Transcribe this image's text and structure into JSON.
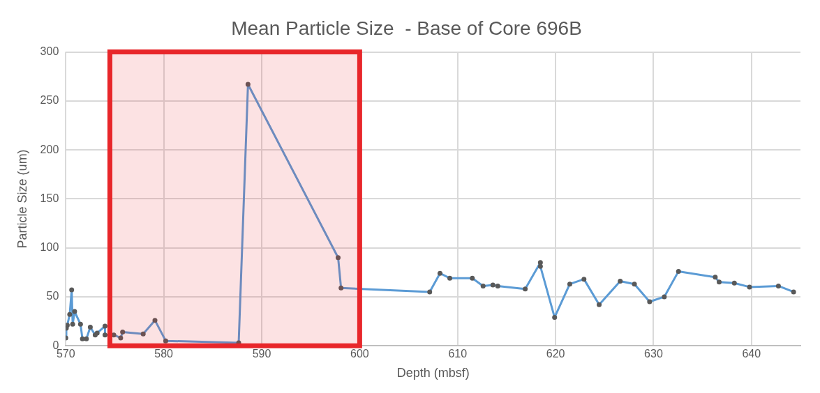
{
  "chart_data": {
    "type": "line",
    "title": "Mean Particle Size  - Base of Core 696B",
    "xlabel": "Depth (mbsf)",
    "ylabel": "Particle Size (um)",
    "xlim": [
      570,
      645
    ],
    "xticks": [
      570,
      580,
      590,
      600,
      610,
      620,
      630,
      640
    ],
    "ylim": [
      0,
      300
    ],
    "yticks": [
      0,
      50,
      100,
      150,
      200,
      250,
      300
    ],
    "grid": true,
    "legend": false,
    "marker": "circle",
    "line_style": "solid",
    "bands": [
      {
        "axis": "x",
        "from": 574.5,
        "to": 600,
        "color": "#e8262a"
      }
    ],
    "series": [
      {
        "color": "#5b9bd5",
        "x": [
          570,
          570.05,
          570.15,
          570.4,
          570.6,
          570.7,
          570.9,
          571.5,
          571.7,
          572.1,
          572.5,
          573,
          573.2,
          574,
          574,
          574.9,
          575.6,
          575.8,
          577.9,
          579.1,
          580.2,
          587.65,
          588.6,
          597.8,
          598.1,
          607.15,
          608.2,
          609.2,
          611.5,
          612.6,
          613.6,
          614.1,
          616.9,
          618.45,
          618.45,
          619.9,
          621.45,
          622.9,
          624.45,
          626.6,
          628.05,
          629.6,
          631.1,
          632.55,
          636.3,
          636.7,
          638.25,
          639.8,
          642.75,
          644.3
        ],
        "values": [
          8,
          18,
          21,
          32,
          57,
          22,
          35,
          22,
          7,
          7,
          19,
          11,
          13,
          20,
          11,
          11,
          8,
          14,
          12,
          26,
          5,
          3,
          267,
          90,
          59,
          55,
          74,
          69,
          69,
          61,
          62,
          61,
          58,
          85,
          81,
          29,
          63,
          68,
          42,
          66,
          63,
          45,
          50,
          76,
          70,
          65,
          64,
          60,
          61,
          55
        ]
      }
    ]
  }
}
